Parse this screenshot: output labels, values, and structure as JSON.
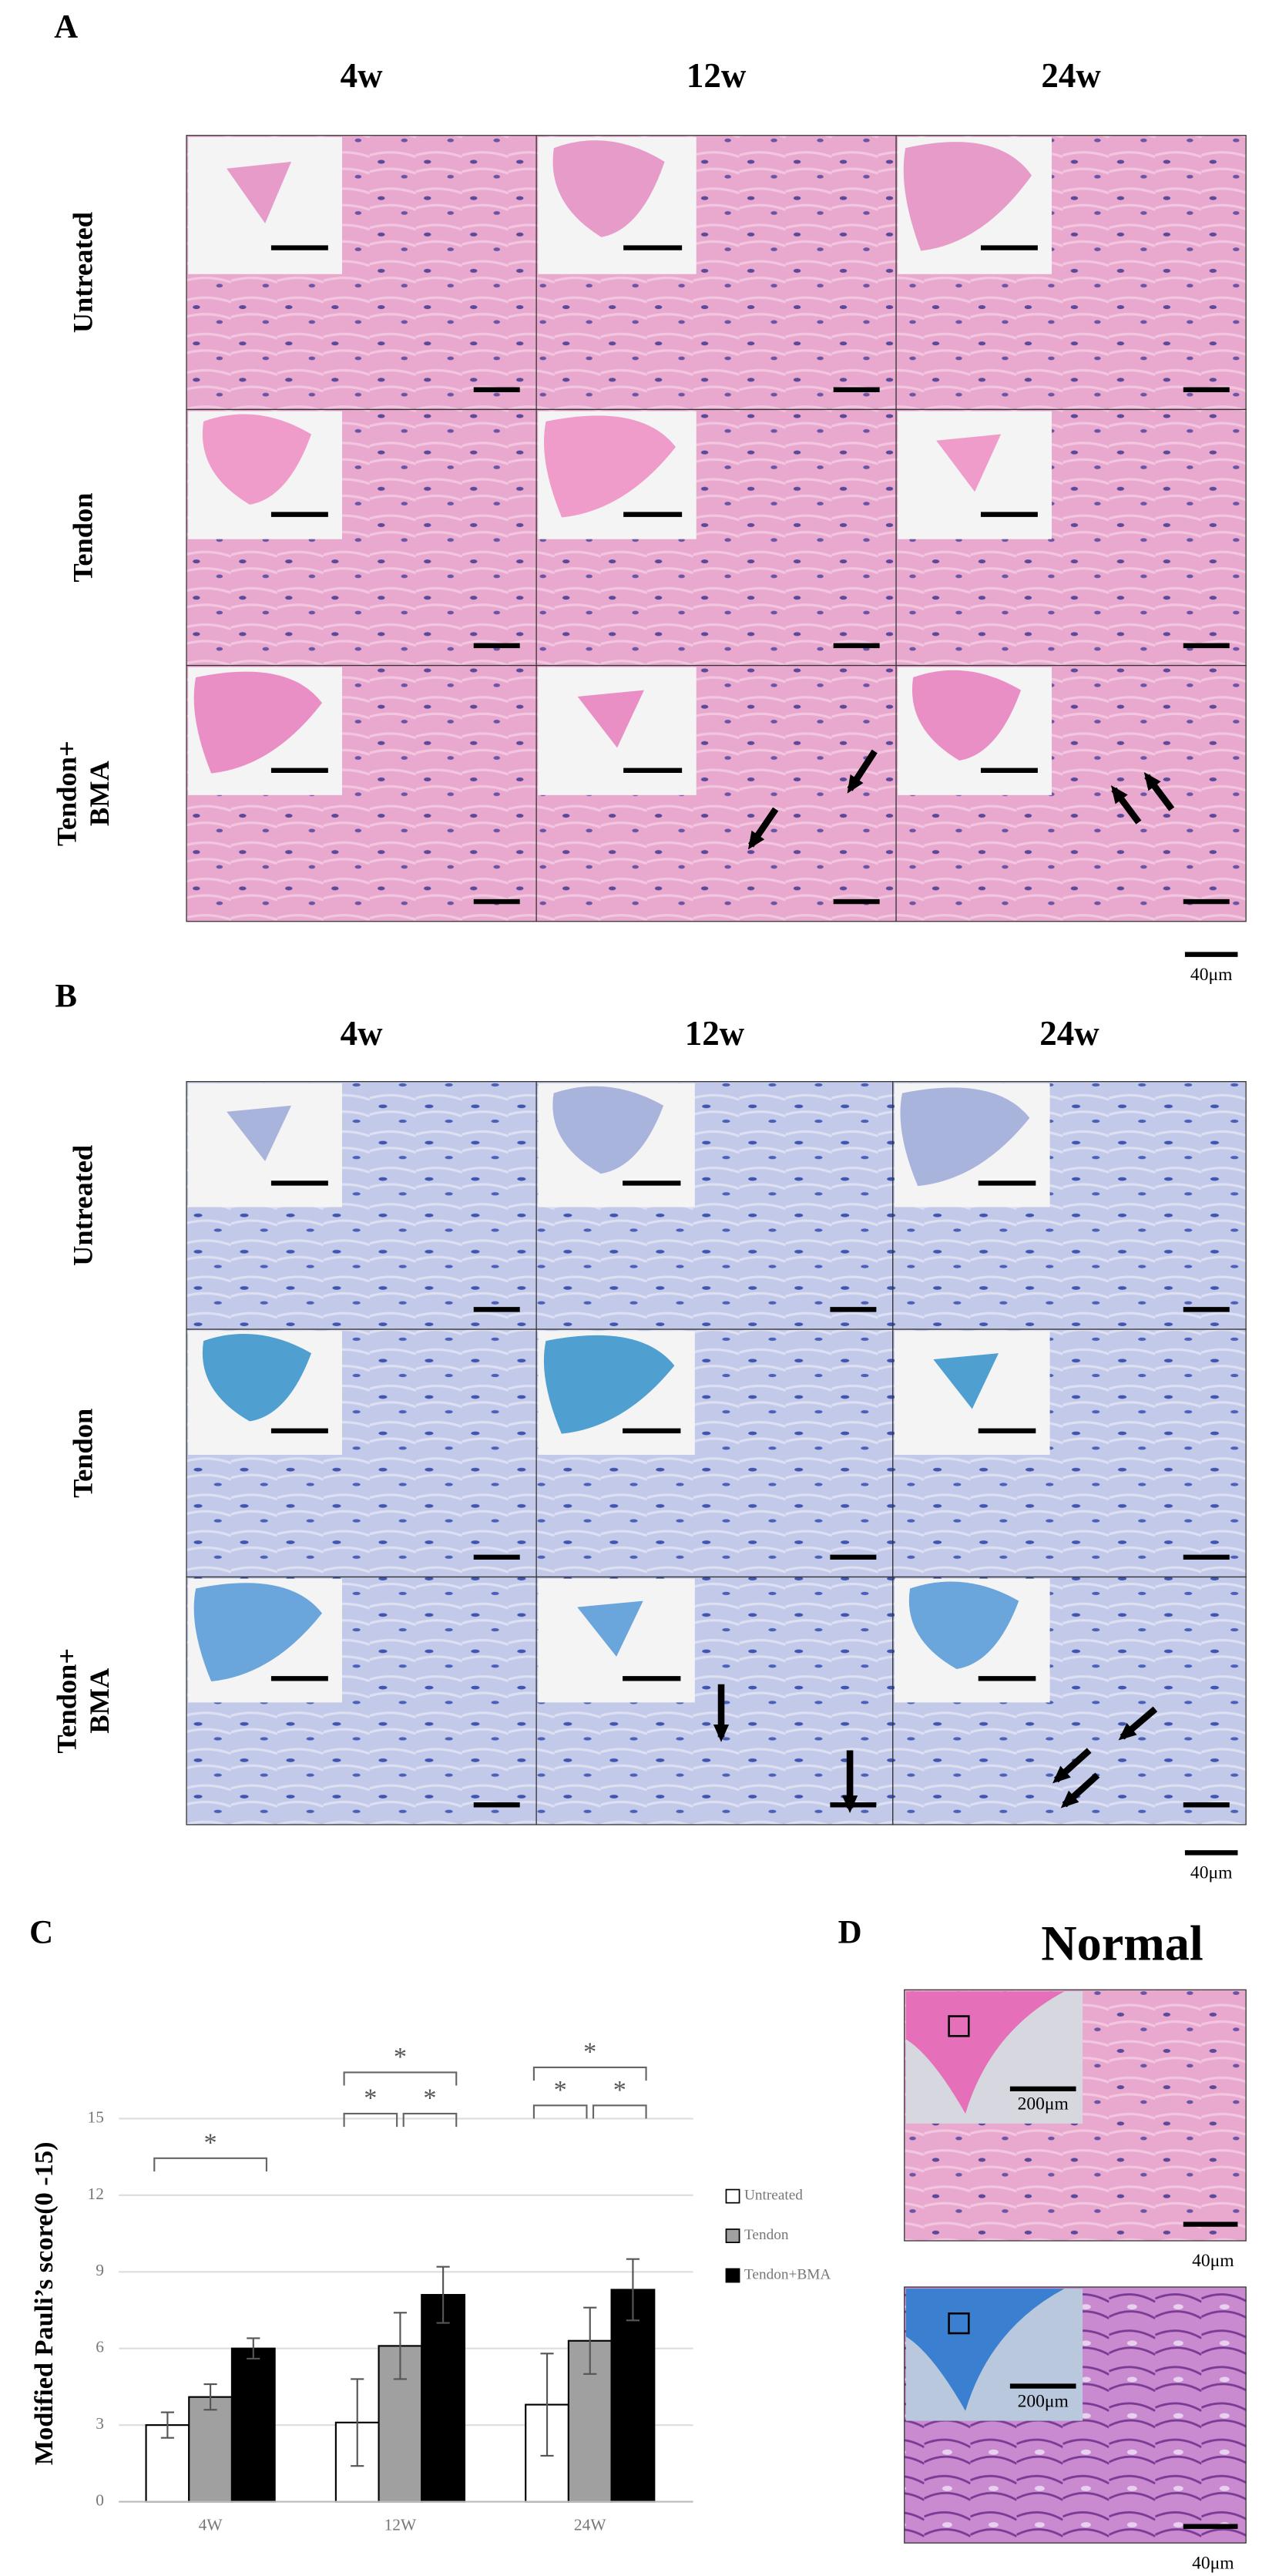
{
  "panel_a": {
    "label": "A",
    "columns": [
      "4w",
      "12w",
      "24w"
    ],
    "rows": [
      [
        "Untreated"
      ],
      [
        "Tendon"
      ],
      [
        "Tendon+",
        "BMA"
      ]
    ],
    "scale_bar": "40μm"
  },
  "panel_b": {
    "label": "B",
    "columns": [
      "4w",
      "12w",
      "24w"
    ],
    "rows": [
      [
        "Untreated"
      ],
      [
        "Tendon"
      ],
      [
        "Tendon+",
        "BMA"
      ]
    ],
    "scale_bar": "40μm"
  },
  "chart_data": {
    "type": "bar",
    "label": "C",
    "y_label": "Modified Pauli’s score(0 -15)",
    "categories": [
      "4W",
      "12W",
      "24W"
    ],
    "series": [
      {
        "name": "Untreated",
        "color": "#ffffff",
        "values": [
          3.0,
          3.1,
          3.8
        ],
        "errors": [
          0.5,
          1.7,
          2.0
        ]
      },
      {
        "name": "Tendon",
        "color": "#a0a0a0",
        "values": [
          4.1,
          6.1,
          6.3
        ],
        "errors": [
          0.5,
          1.3,
          1.3
        ]
      },
      {
        "name": "Tendon+BMA",
        "color": "#000000",
        "values": [
          6.0,
          8.1,
          8.3
        ],
        "errors": [
          0.4,
          1.1,
          1.2
        ]
      }
    ],
    "ylim": [
      0,
      15
    ],
    "yticks": [
      0,
      3,
      6,
      9,
      12,
      15
    ],
    "grid": true,
    "significance": [
      {
        "category": "4W",
        "from": "Untreated",
        "to": "Tendon+BMA",
        "label": "*"
      },
      {
        "category": "12W",
        "from": "Untreated",
        "to": "Tendon+BMA",
        "label": "*"
      },
      {
        "category": "12W",
        "from": "Untreated",
        "to": "Tendon",
        "label": "*"
      },
      {
        "category": "12W",
        "from": "Tendon",
        "to": "Tendon+BMA",
        "label": "*"
      },
      {
        "category": "24W",
        "from": "Untreated",
        "to": "Tendon+BMA",
        "label": "*"
      },
      {
        "category": "24W",
        "from": "Untreated",
        "to": "Tendon",
        "label": "*"
      },
      {
        "category": "24W",
        "from": "Tendon",
        "to": "Tendon+BMA",
        "label": "*"
      }
    ]
  },
  "panel_d": {
    "label": "D",
    "title": "Normal",
    "images": [
      {
        "inset_scale": "200μm",
        "scale_bar": "40μm"
      },
      {
        "inset_scale": "200μm",
        "scale_bar": "40μm"
      }
    ]
  }
}
